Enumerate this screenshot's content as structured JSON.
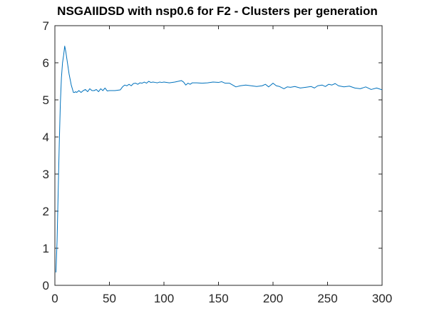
{
  "chart_data": {
    "type": "line",
    "title": "NSGAIIDSD with nsp0.6 for F2 - Clusters per generation",
    "xlabel": "",
    "ylabel": "",
    "xlim": [
      0,
      300
    ],
    "ylim": [
      0,
      7
    ],
    "xticks": [
      0,
      50,
      100,
      150,
      200,
      250,
      300
    ],
    "yticks": [
      0,
      1,
      2,
      3,
      4,
      5,
      6,
      7
    ],
    "grid": false,
    "line_color": "#0072BD",
    "axis_color": "#262626",
    "series": [
      {
        "x": [
          1,
          2,
          3,
          4,
          5,
          6,
          7,
          8,
          9,
          10,
          11,
          12,
          13,
          14,
          15,
          16,
          17,
          18,
          19,
          20,
          22,
          24,
          26,
          28,
          30,
          32,
          34,
          36,
          38,
          40,
          42,
          44,
          46,
          48,
          50,
          55,
          60,
          62,
          64,
          66,
          68,
          70,
          72,
          74,
          76,
          78,
          80,
          82,
          84,
          86,
          88,
          90,
          92,
          94,
          96,
          98,
          100,
          105,
          110,
          113,
          116,
          118,
          120,
          122,
          124,
          126,
          128,
          130,
          135,
          140,
          145,
          150,
          153,
          156,
          160,
          163,
          166,
          170,
          175,
          180,
          185,
          190,
          193,
          196,
          198,
          200,
          203,
          206,
          210,
          213,
          216,
          220,
          225,
          230,
          235,
          238,
          241,
          245,
          248,
          251,
          254,
          257,
          260,
          265,
          270,
          275,
          280,
          285,
          290,
          295,
          297,
          300
        ],
        "values": [
          0.35,
          1.2,
          2.5,
          3.8,
          4.9,
          5.6,
          6.0,
          6.2,
          6.45,
          6.3,
          6.1,
          5.9,
          5.7,
          5.55,
          5.4,
          5.3,
          5.2,
          5.2,
          5.22,
          5.2,
          5.25,
          5.2,
          5.25,
          5.28,
          5.22,
          5.3,
          5.25,
          5.25,
          5.28,
          5.22,
          5.3,
          5.25,
          5.32,
          5.24,
          5.25,
          5.25,
          5.27,
          5.35,
          5.4,
          5.38,
          5.42,
          5.38,
          5.44,
          5.45,
          5.42,
          5.46,
          5.45,
          5.48,
          5.45,
          5.5,
          5.47,
          5.48,
          5.47,
          5.46,
          5.48,
          5.47,
          5.48,
          5.46,
          5.48,
          5.5,
          5.52,
          5.48,
          5.4,
          5.45,
          5.42,
          5.46,
          5.46,
          5.46,
          5.45,
          5.46,
          5.48,
          5.47,
          5.49,
          5.45,
          5.45,
          5.4,
          5.35,
          5.38,
          5.4,
          5.38,
          5.36,
          5.38,
          5.42,
          5.35,
          5.4,
          5.45,
          5.38,
          5.36,
          5.3,
          5.35,
          5.34,
          5.36,
          5.32,
          5.34,
          5.36,
          5.32,
          5.38,
          5.4,
          5.36,
          5.42,
          5.4,
          5.44,
          5.38,
          5.35,
          5.37,
          5.32,
          5.3,
          5.35,
          5.28,
          5.32,
          5.3,
          5.27
        ]
      }
    ]
  }
}
